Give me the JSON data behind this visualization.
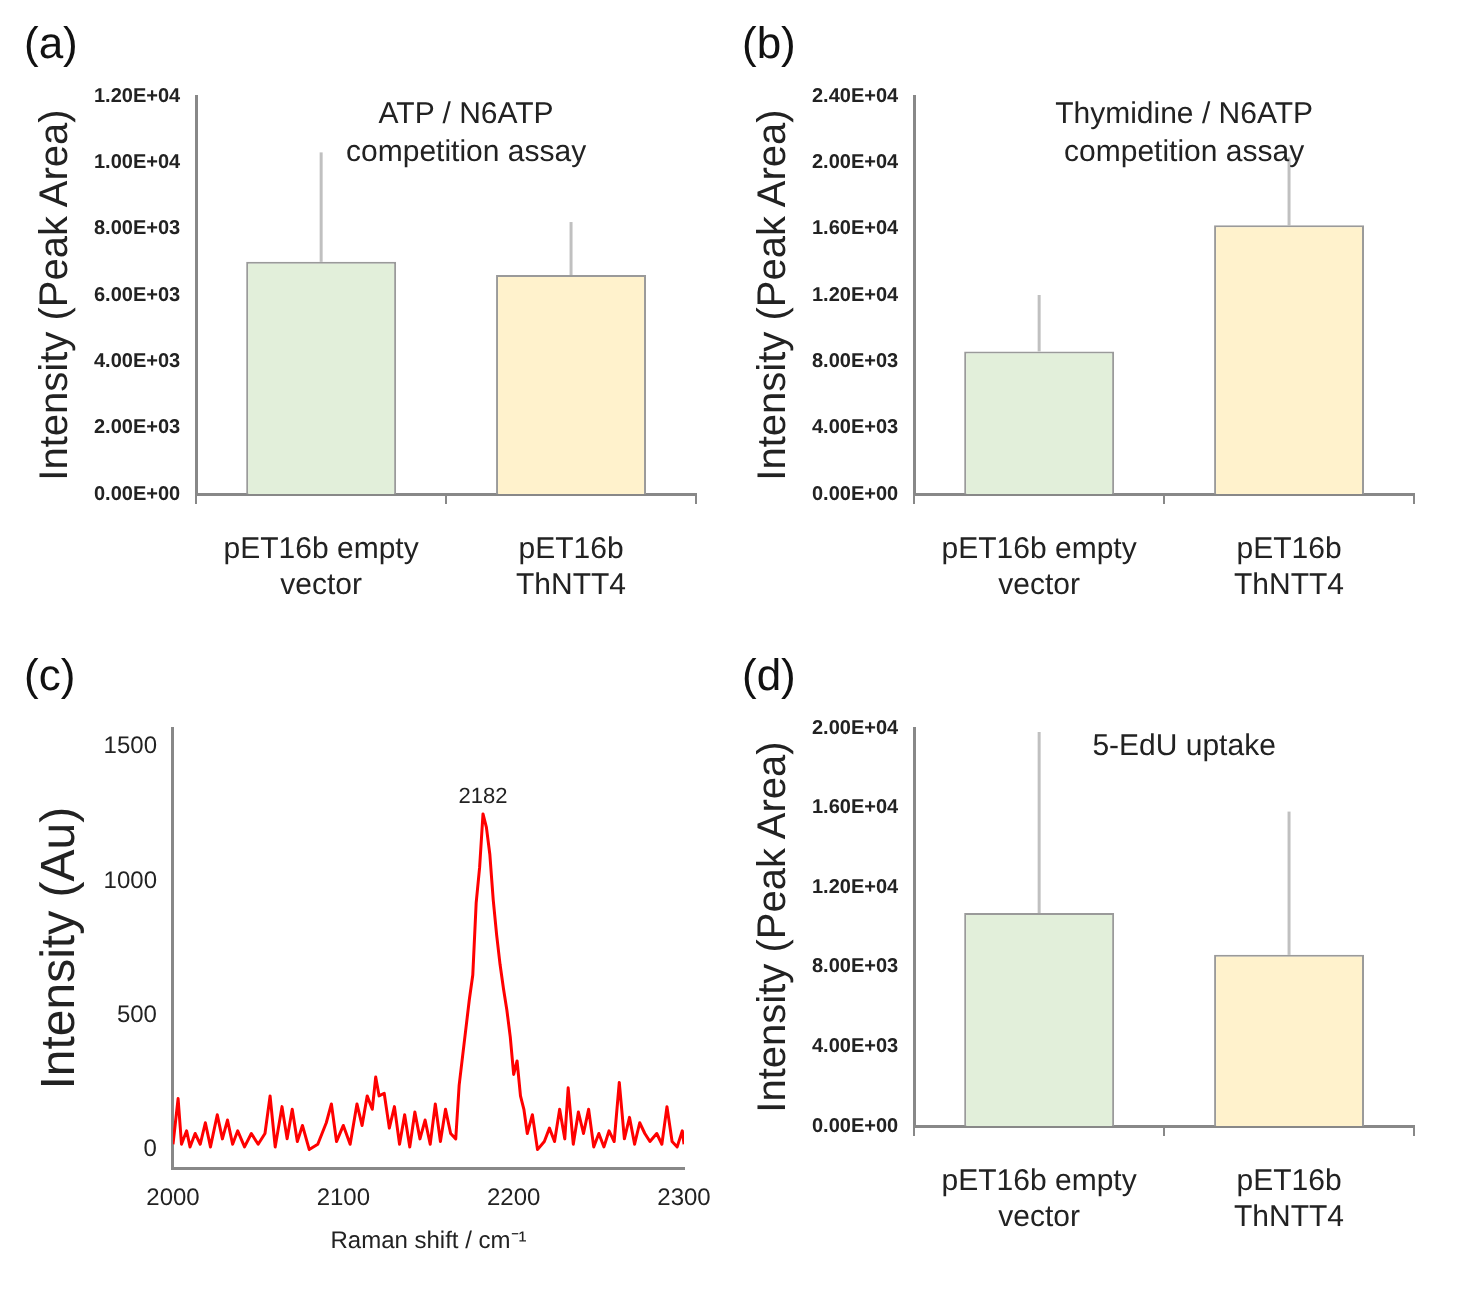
{
  "chart_data": [
    {
      "type": "bar",
      "title": "ATP / N6ATP competition assay",
      "ylabel": "Intensity (Peak Area)",
      "annotations": [
        "(a)"
      ],
      "categories": [
        "pET16b empty vector",
        "pET16b ThNTT4"
      ],
      "values": [
        7000,
        6600
      ],
      "colors": [
        "#e2efda",
        "#fff2cc"
      ],
      "errors": [
        [
          7000,
          10300
        ],
        [
          6600,
          8200
        ]
      ],
      "ylim": [
        0,
        12000
      ],
      "yticks": [
        {
          "value": 0,
          "label": "0.00E+00"
        },
        {
          "value": 2000,
          "label": "2.00E+03"
        },
        {
          "value": 4000,
          "label": "4.00E+03"
        },
        {
          "value": 6000,
          "label": "6.00E+03"
        },
        {
          "value": 8000,
          "label": "8.00E+03"
        },
        {
          "value": 10000,
          "label": "1.00E+04"
        },
        {
          "value": 12000,
          "label": "1.20E+04"
        }
      ],
      "grid": false,
      "legend": false
    },
    {
      "type": "bar",
      "title": "Thymidine / N6ATP competition assay",
      "ylabel": "Intensity (Peak Area)",
      "annotations": [
        "(b)"
      ],
      "categories": [
        "pET16b empty vector",
        "pET16b ThNTT4"
      ],
      "values": [
        8600,
        16200
      ],
      "colors": [
        "#e2efda",
        "#fff2cc"
      ],
      "errors": [
        [
          8600,
          12000
        ],
        [
          16200,
          20300
        ]
      ],
      "ylim": [
        0,
        24000
      ],
      "yticks": [
        {
          "value": 0,
          "label": "0.00E+00"
        },
        {
          "value": 4000,
          "label": "4.00E+03"
        },
        {
          "value": 8000,
          "label": "8.00E+03"
        },
        {
          "value": 12000,
          "label": "1.20E+04"
        },
        {
          "value": 16000,
          "label": "1.60E+04"
        },
        {
          "value": 20000,
          "label": "2.00E+04"
        },
        {
          "value": 24000,
          "label": "2.40E+04"
        }
      ],
      "grid": false,
      "legend": false
    },
    {
      "type": "line",
      "xlabel": "Raman shift / cm⁻¹",
      "ylabel": "Intensity (Au)",
      "annotations": [
        "(c)",
        {
          "text": "2182",
          "x": 2182,
          "y": 1250
        }
      ],
      "series": [
        {
          "color": "#ff0000",
          "x": [
            2000,
            2003,
            2005,
            2008,
            2010,
            2013,
            2016,
            2019,
            2022,
            2026,
            2029,
            2032,
            2035,
            2038,
            2042,
            2046,
            2050,
            2054,
            2057,
            2060,
            2064,
            2067,
            2070,
            2073,
            2076,
            2080,
            2085,
            2090,
            2093,
            2096,
            2100,
            2104,
            2108,
            2111,
            2114,
            2117,
            2119,
            2121,
            2124,
            2127,
            2130,
            2133,
            2136,
            2139,
            2142,
            2145,
            2148,
            2151,
            2154,
            2157,
            2160,
            2163,
            2166,
            2168,
            2171,
            2174,
            2176,
            2178,
            2180,
            2182,
            2184,
            2186,
            2188,
            2190,
            2192,
            2194,
            2196,
            2198,
            2200,
            2202,
            2204,
            2206,
            2208,
            2211,
            2214,
            2218,
            2221,
            2224,
            2227,
            2230,
            2232,
            2235,
            2238,
            2241,
            2244,
            2247,
            2250,
            2253,
            2256,
            2259,
            2262,
            2265,
            2268,
            2271,
            2274,
            2277,
            2280,
            2284,
            2287,
            2290,
            2293,
            2296,
            2299,
            2300
          ],
          "values": [
            20,
            190,
            20,
            70,
            10,
            60,
            20,
            100,
            10,
            130,
            40,
            110,
            20,
            70,
            10,
            60,
            20,
            60,
            200,
            10,
            160,
            40,
            150,
            30,
            90,
            0,
            20,
            100,
            170,
            30,
            90,
            20,
            170,
            90,
            200,
            150,
            270,
            200,
            210,
            80,
            160,
            20,
            130,
            10,
            140,
            40,
            110,
            20,
            170,
            30,
            150,
            60,
            40,
            240,
            400,
            560,
            650,
            920,
            1050,
            1250,
            1200,
            1100,
            930,
            800,
            690,
            600,
            520,
            420,
            280,
            330,
            200,
            150,
            60,
            130,
            0,
            30,
            80,
            30,
            150,
            40,
            230,
            20,
            140,
            60,
            150,
            10,
            60,
            10,
            70,
            30,
            250,
            40,
            120,
            20,
            100,
            60,
            30,
            60,
            20,
            160,
            30,
            10,
            70,
            20
          ]
        }
      ],
      "xlim": [
        2000,
        2300
      ],
      "xticks": [
        2000,
        2100,
        2200,
        2300
      ],
      "ylim": [
        -70,
        1570
      ],
      "yticks": [
        0,
        500,
        1000,
        1500
      ],
      "grid": false,
      "legend": false,
      "marker": "none",
      "line_style": "solid"
    },
    {
      "type": "bar",
      "title": "5-EdU uptake",
      "ylabel": "Intensity (Peak Area)",
      "annotations": [
        "(d)"
      ],
      "categories": [
        "pET16b empty vector",
        "pET16b ThNTT4"
      ],
      "values": [
        10700,
        8600
      ],
      "colors": [
        "#e2efda",
        "#fff2cc"
      ],
      "errors": [
        [
          10700,
          19800
        ],
        [
          8600,
          15800
        ]
      ],
      "ylim": [
        0,
        20000
      ],
      "yticks": [
        {
          "value": 0,
          "label": "0.00E+00"
        },
        {
          "value": 4000,
          "label": "4.00E+03"
        },
        {
          "value": 8000,
          "label": "8.00E+03"
        },
        {
          "value": 12000,
          "label": "1.20E+04"
        },
        {
          "value": 16000,
          "label": "1.60E+04"
        },
        {
          "value": 20000,
          "label": "2.00E+04"
        }
      ],
      "grid": false,
      "legend": false
    }
  ]
}
